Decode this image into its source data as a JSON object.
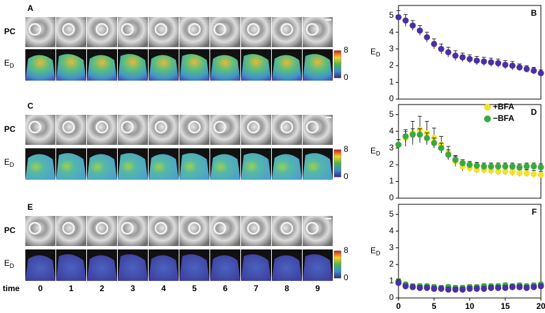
{
  "figure": {
    "panels": [
      {
        "label": "A",
        "pc_label": "PC",
        "ed_label": "E",
        "ed_sub": "D",
        "colorbar_ticks": [
          8,
          0
        ]
      },
      {
        "label": "C",
        "pc_label": "PC",
        "ed_label": "E",
        "ed_sub": "D",
        "colorbar_ticks": [
          8,
          0
        ]
      },
      {
        "label": "E",
        "pc_label": "PC",
        "ed_label": "E",
        "ed_sub": "D",
        "colorbar_ticks": [
          8,
          0
        ]
      }
    ],
    "time_label": "time",
    "time_points": [
      0,
      1,
      2,
      3,
      4,
      5,
      6,
      7,
      8,
      9
    ]
  },
  "chart_data": [
    {
      "type": "line",
      "label": "B",
      "ylabel": "E",
      "ylabel_sub": "D",
      "xlim": [
        0,
        20
      ],
      "ylim": [
        0,
        5.6
      ],
      "yticks": [
        0,
        1,
        2,
        3,
        4,
        5
      ],
      "x": [
        0,
        1,
        2,
        3,
        4,
        5,
        6,
        7,
        8,
        9,
        10,
        11,
        12,
        13,
        14,
        15,
        16,
        17,
        18,
        19,
        20
      ],
      "series": [
        {
          "color": "#4b2fa3",
          "values": [
            4.9,
            4.7,
            4.4,
            4.1,
            3.7,
            3.3,
            3.0,
            2.8,
            2.6,
            2.5,
            2.4,
            2.3,
            2.25,
            2.2,
            2.15,
            2.05,
            2.0,
            1.9,
            1.8,
            1.7,
            1.55
          ],
          "errors": [
            0.4,
            0.35,
            0.3,
            0.3,
            0.3,
            0.3,
            0.3,
            0.3,
            0.3,
            0.25,
            0.25,
            0.25,
            0.25,
            0.25,
            0.25,
            0.25,
            0.25,
            0.2,
            0.2,
            0.2,
            0.2
          ]
        }
      ]
    },
    {
      "type": "line",
      "label": "D",
      "ylabel": "E",
      "ylabel_sub": "D",
      "xlim": [
        0,
        20
      ],
      "ylim": [
        0,
        5.6
      ],
      "yticks": [
        0,
        1,
        2,
        3,
        4,
        5
      ],
      "legend": "upper right",
      "x": [
        0,
        1,
        2,
        3,
        4,
        5,
        6,
        7,
        8,
        9,
        10,
        11,
        12,
        13,
        14,
        15,
        16,
        17,
        18,
        19,
        20
      ],
      "series": [
        {
          "name": "+BFA",
          "color": "#f2e12a",
          "values": [
            3.2,
            3.6,
            3.9,
            4.1,
            3.9,
            3.6,
            3.2,
            2.7,
            2.2,
            1.9,
            1.8,
            1.7,
            1.7,
            1.65,
            1.6,
            1.6,
            1.55,
            1.5,
            1.5,
            1.45,
            1.4
          ],
          "errors": [
            0.3,
            0.5,
            0.7,
            0.8,
            0.7,
            0.6,
            0.5,
            0.4,
            0.3,
            0.25,
            0.2,
            0.2,
            0.2,
            0.2,
            0.2,
            0.2,
            0.2,
            0.2,
            0.2,
            0.2,
            0.2
          ]
        },
        {
          "name": "−BFA",
          "color": "#3aa83f",
          "values": [
            3.2,
            3.7,
            3.8,
            3.8,
            3.6,
            3.3,
            3.0,
            2.6,
            2.3,
            2.1,
            2.0,
            1.95,
            1.9,
            1.9,
            1.9,
            1.9,
            1.9,
            1.85,
            1.9,
            1.9,
            1.85
          ],
          "errors": [
            0.3,
            0.3,
            0.35,
            0.35,
            0.3,
            0.3,
            0.3,
            0.3,
            0.25,
            0.2,
            0.2,
            0.2,
            0.2,
            0.2,
            0.2,
            0.2,
            0.2,
            0.2,
            0.2,
            0.2,
            0.2
          ]
        }
      ]
    },
    {
      "type": "line",
      "label": "F",
      "ylabel": "E",
      "ylabel_sub": "D",
      "xlim": [
        0,
        20
      ],
      "ylim": [
        0,
        5.6
      ],
      "yticks": [
        0,
        1,
        2,
        3,
        4,
        5
      ],
      "xticks": [
        0,
        5,
        10,
        15,
        20
      ],
      "x": [
        0,
        1,
        2,
        3,
        4,
        5,
        6,
        7,
        8,
        9,
        10,
        11,
        12,
        13,
        14,
        15,
        16,
        17,
        18,
        19,
        20
      ],
      "series": [
        {
          "color": "#3aa83f",
          "values": [
            1.0,
            0.8,
            0.7,
            0.7,
            0.7,
            0.65,
            0.6,
            0.65,
            0.6,
            0.6,
            0.65,
            0.65,
            0.7,
            0.7,
            0.7,
            0.75,
            0.7,
            0.75,
            0.7,
            0.75,
            0.8
          ],
          "errors": [
            0.15,
            0.15,
            0.15,
            0.15,
            0.15,
            0.15,
            0.15,
            0.15,
            0.15,
            0.15,
            0.15,
            0.15,
            0.15,
            0.15,
            0.15,
            0.15,
            0.15,
            0.15,
            0.15,
            0.15,
            0.15
          ]
        },
        {
          "color": "#4b2fa3",
          "values": [
            0.9,
            0.7,
            0.65,
            0.6,
            0.6,
            0.55,
            0.55,
            0.5,
            0.5,
            0.5,
            0.55,
            0.55,
            0.55,
            0.6,
            0.6,
            0.6,
            0.65,
            0.65,
            0.6,
            0.65,
            0.7
          ],
          "errors": [
            0.2,
            0.15,
            0.15,
            0.15,
            0.15,
            0.15,
            0.15,
            0.15,
            0.15,
            0.15,
            0.15,
            0.15,
            0.15,
            0.15,
            0.15,
            0.15,
            0.15,
            0.15,
            0.15,
            0.15,
            0.15
          ]
        }
      ]
    }
  ]
}
